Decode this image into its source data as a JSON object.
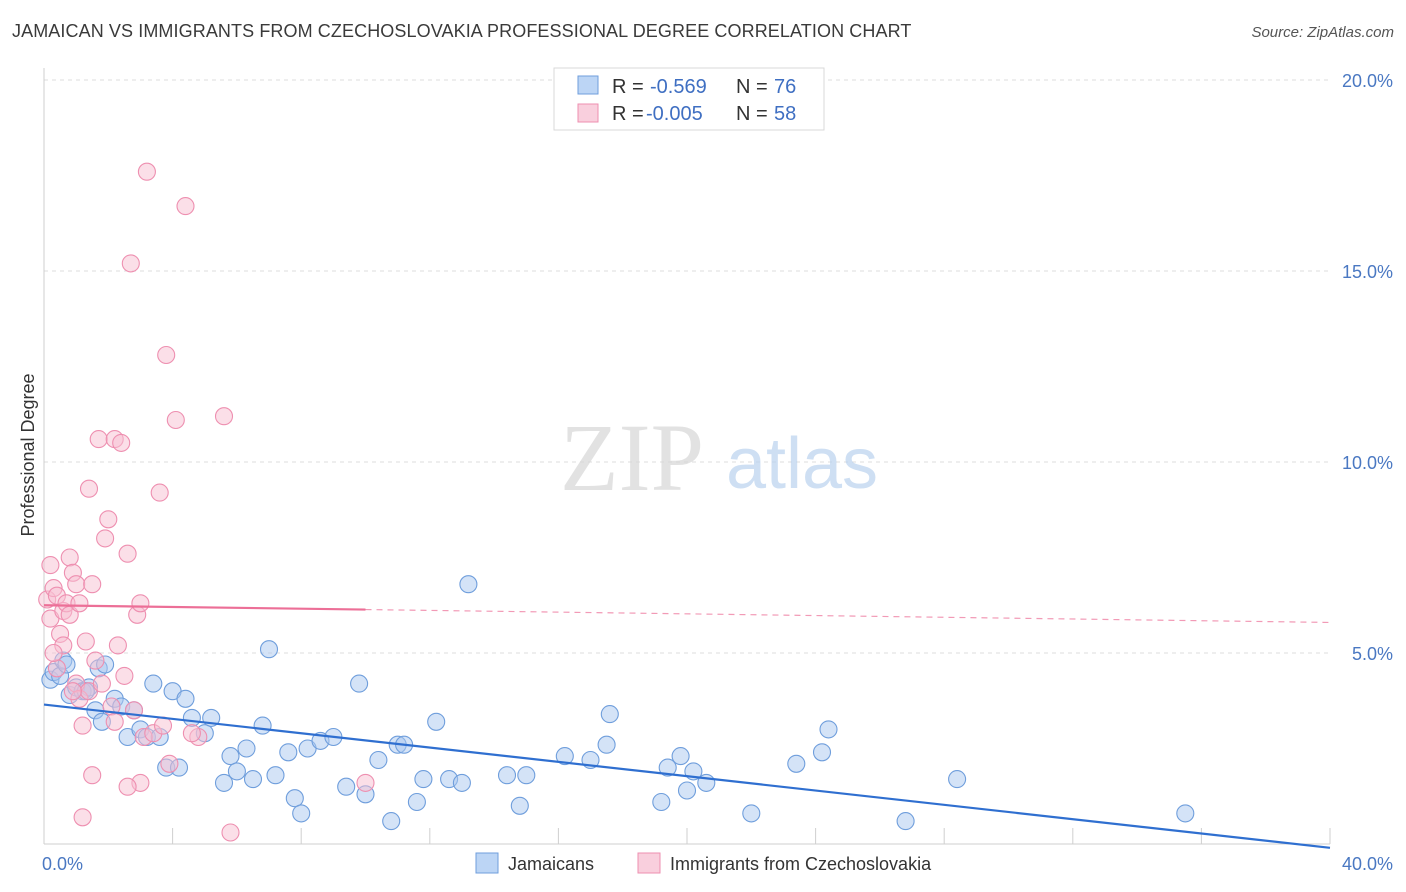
{
  "header": {
    "title": "JAMAICAN VS IMMIGRANTS FROM CZECHOSLOVAKIA PROFESSIONAL DEGREE CORRELATION CHART",
    "source": "Source: ZipAtlas.com"
  },
  "watermark": {
    "zip": "ZIP",
    "atlas": "atlas"
  },
  "colors": {
    "blue_fill": "#a9c8f0",
    "blue_stroke": "#6f9edc",
    "blue_line": "#2f6fd0",
    "pink_fill": "#f7bfd2",
    "pink_stroke": "#ee8fb0",
    "pink_line": "#ec6f97",
    "tick_text": "#4a78c2",
    "grid": "#dddddd"
  },
  "legend_box": {
    "rows": [
      {
        "r_label": "R = ",
        "r_value": "-0.569",
        "n_label": "N = ",
        "n_value": "76"
      },
      {
        "r_label": "R = ",
        "r_value": "-0.005",
        "n_label": "N = ",
        "n_value": "58"
      }
    ]
  },
  "chart_data": {
    "type": "scatter",
    "title": "JAMAICAN VS IMMIGRANTS FROM CZECHOSLOVAKIA PROFESSIONAL DEGREE CORRELATION CHART",
    "xlabel": "",
    "ylabel": "Professional Degree",
    "xlim": [
      0,
      40
    ],
    "ylim": [
      0,
      20
    ],
    "x_tick_labels": [
      "0.0%",
      "40.0%"
    ],
    "y_ticks": [
      5,
      10,
      15,
      20
    ],
    "y_tick_labels": [
      "5.0%",
      "10.0%",
      "15.0%",
      "20.0%"
    ],
    "grid": true,
    "legend_position": "bottom",
    "series": [
      {
        "name": "Jamaicans",
        "color": "blue",
        "r": -0.569,
        "n": 76,
        "trend": {
          "x0": 0,
          "y0": 3.65,
          "x1": 40,
          "y1": -0.1,
          "solid_until": 40
        },
        "points": [
          [
            0.2,
            4.3
          ],
          [
            0.3,
            4.5
          ],
          [
            0.5,
            4.4
          ],
          [
            0.6,
            4.8
          ],
          [
            0.8,
            3.9
          ],
          [
            1.0,
            4.1
          ],
          [
            1.2,
            4.0
          ],
          [
            1.4,
            4.1
          ],
          [
            1.6,
            3.5
          ],
          [
            1.7,
            4.6
          ],
          [
            1.8,
            3.2
          ],
          [
            1.9,
            4.7
          ],
          [
            2.2,
            3.8
          ],
          [
            2.4,
            3.6
          ],
          [
            2.6,
            2.8
          ],
          [
            2.8,
            3.5
          ],
          [
            3.0,
            3.0
          ],
          [
            3.2,
            2.8
          ],
          [
            3.4,
            4.2
          ],
          [
            3.6,
            2.8
          ],
          [
            3.8,
            2.0
          ],
          [
            4.0,
            4.0
          ],
          [
            4.2,
            2.0
          ],
          [
            4.4,
            3.8
          ],
          [
            4.6,
            3.3
          ],
          [
            5.0,
            2.9
          ],
          [
            5.2,
            3.3
          ],
          [
            5.6,
            1.6
          ],
          [
            5.8,
            2.3
          ],
          [
            6.0,
            1.9
          ],
          [
            6.3,
            2.5
          ],
          [
            6.5,
            1.7
          ],
          [
            6.8,
            3.1
          ],
          [
            7.0,
            5.1
          ],
          [
            7.2,
            1.8
          ],
          [
            7.6,
            2.4
          ],
          [
            7.8,
            1.2
          ],
          [
            8.0,
            0.8
          ],
          [
            8.2,
            2.5
          ],
          [
            8.6,
            2.7
          ],
          [
            9.0,
            2.8
          ],
          [
            9.4,
            1.5
          ],
          [
            9.8,
            4.2
          ],
          [
            10.0,
            1.3
          ],
          [
            10.4,
            2.2
          ],
          [
            10.8,
            0.6
          ],
          [
            11.0,
            2.6
          ],
          [
            11.2,
            2.6
          ],
          [
            11.6,
            1.1
          ],
          [
            11.8,
            1.7
          ],
          [
            12.2,
            3.2
          ],
          [
            12.6,
            1.7
          ],
          [
            13.0,
            1.6
          ],
          [
            13.2,
            6.8
          ],
          [
            14.4,
            1.8
          ],
          [
            14.8,
            1.0
          ],
          [
            15.0,
            1.8
          ],
          [
            16.2,
            2.3
          ],
          [
            17.0,
            2.2
          ],
          [
            17.5,
            2.6
          ],
          [
            17.6,
            3.4
          ],
          [
            19.2,
            1.1
          ],
          [
            19.4,
            2.0
          ],
          [
            19.8,
            2.3
          ],
          [
            20.0,
            1.4
          ],
          [
            20.2,
            1.9
          ],
          [
            20.6,
            1.6
          ],
          [
            22.0,
            0.8
          ],
          [
            23.4,
            2.1
          ],
          [
            24.2,
            2.4
          ],
          [
            24.4,
            3.0
          ],
          [
            26.8,
            0.6
          ],
          [
            28.4,
            1.7
          ],
          [
            35.5,
            0.8
          ],
          [
            0.7,
            4.7
          ],
          [
            1.3,
            4.0
          ]
        ]
      },
      {
        "name": "Immigrants from Czechoslovakia",
        "color": "pink",
        "r": -0.005,
        "n": 58,
        "trend": {
          "x0": 0,
          "y0": 6.25,
          "x1": 40,
          "y1": 5.8,
          "solid_until": 10
        },
        "points": [
          [
            0.1,
            6.4
          ],
          [
            0.2,
            5.9
          ],
          [
            0.2,
            7.3
          ],
          [
            0.3,
            6.7
          ],
          [
            0.4,
            6.5
          ],
          [
            0.4,
            4.6
          ],
          [
            0.5,
            5.5
          ],
          [
            0.6,
            5.2
          ],
          [
            0.6,
            6.1
          ],
          [
            0.7,
            6.3
          ],
          [
            0.8,
            6.0
          ],
          [
            0.8,
            7.5
          ],
          [
            0.9,
            7.1
          ],
          [
            1.0,
            4.2
          ],
          [
            1.0,
            6.8
          ],
          [
            1.1,
            6.3
          ],
          [
            1.1,
            3.8
          ],
          [
            1.2,
            3.1
          ],
          [
            1.3,
            5.3
          ],
          [
            1.4,
            4.0
          ],
          [
            1.4,
            9.3
          ],
          [
            1.5,
            6.8
          ],
          [
            1.6,
            4.8
          ],
          [
            1.7,
            10.6
          ],
          [
            1.8,
            4.2
          ],
          [
            1.9,
            8.0
          ],
          [
            2.0,
            8.5
          ],
          [
            2.1,
            3.6
          ],
          [
            2.2,
            3.2
          ],
          [
            2.2,
            10.6
          ],
          [
            2.3,
            5.2
          ],
          [
            2.4,
            10.5
          ],
          [
            2.5,
            4.4
          ],
          [
            2.6,
            7.6
          ],
          [
            2.7,
            15.2
          ],
          [
            2.8,
            3.5
          ],
          [
            2.9,
            6.0
          ],
          [
            3.0,
            6.3
          ],
          [
            3.1,
            2.8
          ],
          [
            3.2,
            17.6
          ],
          [
            3.4,
            2.9
          ],
          [
            3.6,
            9.2
          ],
          [
            3.7,
            3.1
          ],
          [
            3.8,
            12.8
          ],
          [
            4.1,
            11.1
          ],
          [
            4.4,
            16.7
          ],
          [
            4.8,
            2.8
          ],
          [
            5.6,
            11.2
          ],
          [
            5.8,
            0.3
          ],
          [
            0.3,
            5.0
          ],
          [
            1.2,
            0.7
          ],
          [
            3.0,
            1.6
          ],
          [
            3.9,
            2.1
          ],
          [
            10.0,
            1.6
          ],
          [
            2.6,
            1.5
          ],
          [
            4.6,
            2.9
          ],
          [
            0.9,
            4.0
          ],
          [
            1.5,
            1.8
          ]
        ]
      }
    ]
  },
  "bottom_legend": {
    "items": [
      {
        "label": "Jamaicans",
        "color": "blue"
      },
      {
        "label": "Immigrants from Czechoslovakia",
        "color": "pink"
      }
    ]
  }
}
